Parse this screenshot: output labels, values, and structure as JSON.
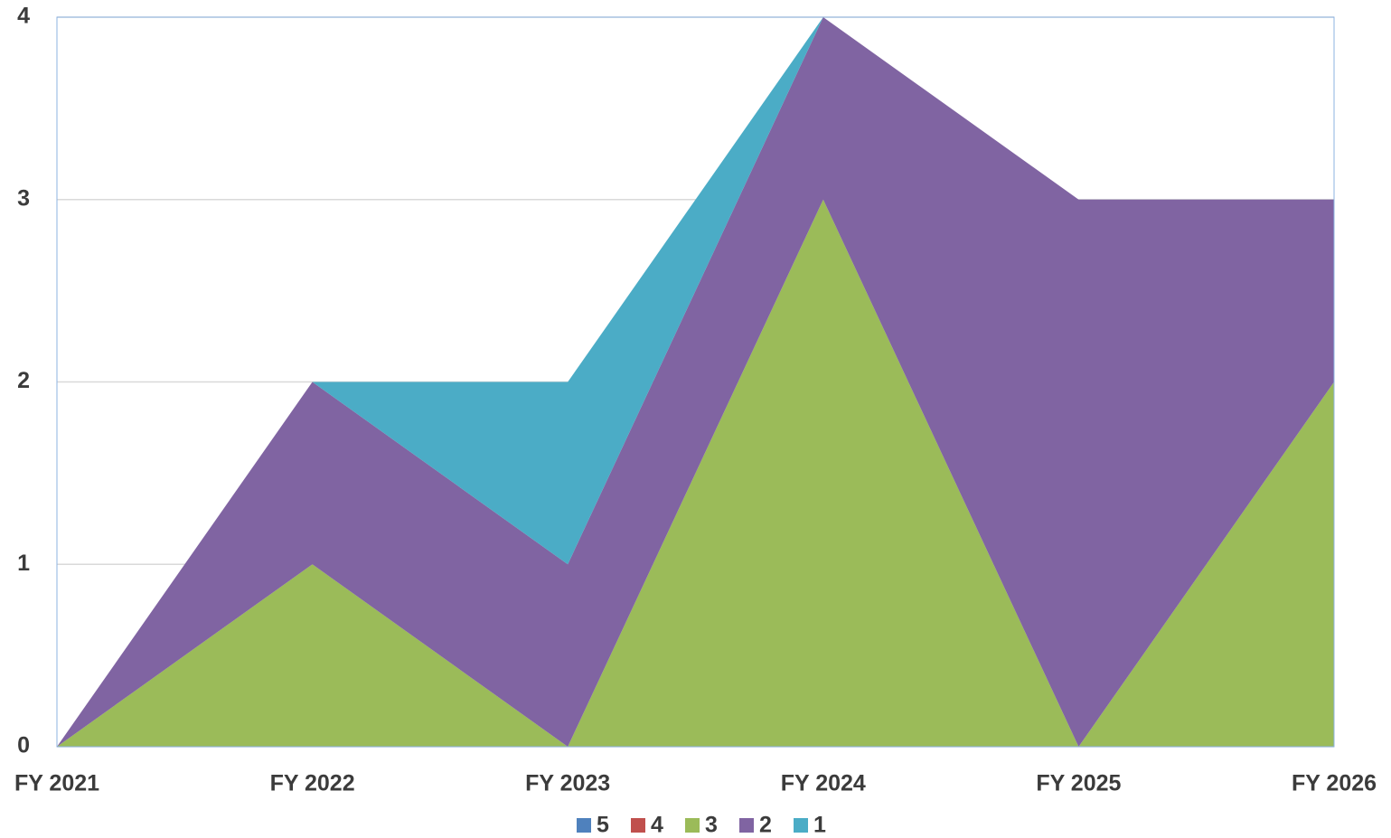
{
  "chart_data": {
    "type": "stacked_area",
    "categories": [
      "FY 2021",
      "FY 2022",
      "FY 2023",
      "FY 2024",
      "FY 2025",
      "FY 2026"
    ],
    "series": [
      {
        "name": "5",
        "color": "#4f81bd",
        "values": [
          0,
          0,
          0,
          0,
          0,
          0
        ]
      },
      {
        "name": "4",
        "color": "#c0504d",
        "values": [
          0,
          0,
          0,
          0,
          0,
          0
        ]
      },
      {
        "name": "3",
        "color": "#9bbb59",
        "values": [
          0,
          1,
          0,
          3,
          0,
          2
        ]
      },
      {
        "name": "2",
        "color": "#8064a2",
        "values": [
          0,
          1,
          1,
          1,
          3,
          1
        ]
      },
      {
        "name": "1",
        "color": "#4bacc6",
        "values": [
          0,
          0,
          1,
          0,
          0,
          0
        ]
      }
    ],
    "ylim": [
      0,
      4
    ],
    "yticks": [
      0,
      1,
      2,
      3,
      4
    ],
    "grid": true,
    "legend": "bottom"
  }
}
